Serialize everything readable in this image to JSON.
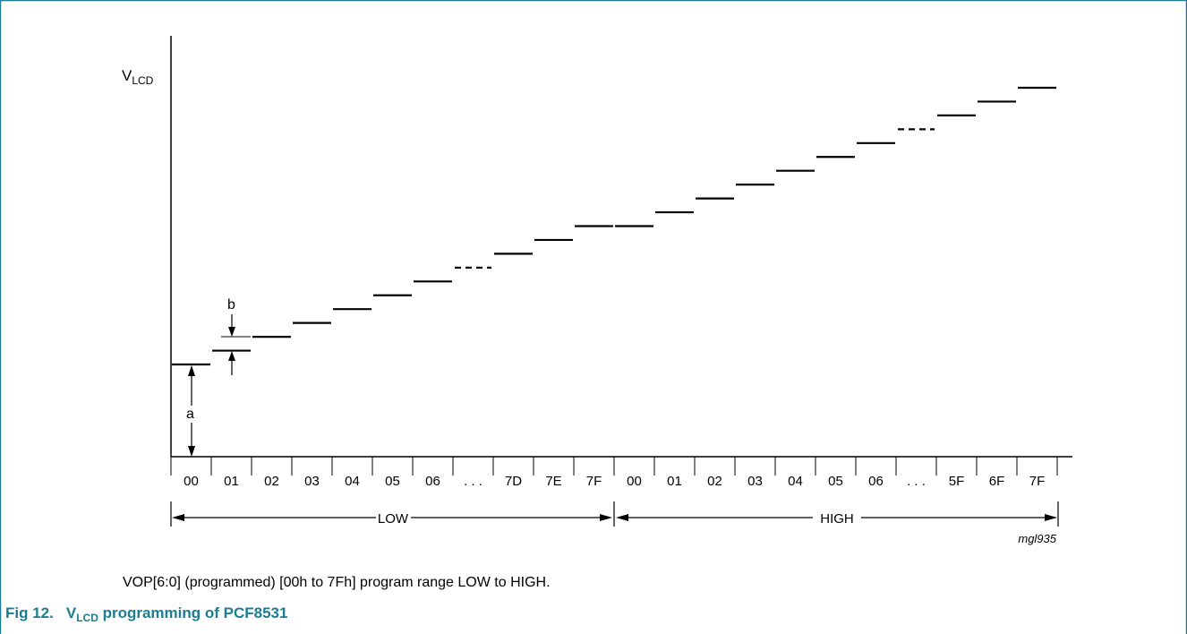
{
  "figure": {
    "label": "Fig 12.",
    "title_prefix": "V",
    "title_sub": "LCD",
    "title_suffix": " programming of PCF8531",
    "caption": "VOP[6:0] (programmed) [00h to 7Fh] program range LOW to HIGH.",
    "ref_code": "mgl935",
    "frame_color": "#1b7c92"
  },
  "axis": {
    "y_label_main": "V",
    "y_label_sub": "LCD"
  },
  "dimensions": {
    "a_label": "a",
    "b_label": "b"
  },
  "ranges": [
    {
      "label": "LOW"
    },
    {
      "label": "HIGH"
    }
  ],
  "x_ticks": [
    "00",
    "01",
    "02",
    "03",
    "04",
    "05",
    "06",
    ". . .",
    "7D",
    "7E",
    "7F",
    "00",
    "01",
    "02",
    "03",
    "04",
    "05",
    "06",
    ". . .",
    "5F",
    "6F",
    "7F"
  ],
  "chart_data": {
    "type": "step",
    "categories": [
      "00",
      "01",
      "02",
      "03",
      "04",
      "05",
      "06",
      ". . .",
      "7D",
      "7E",
      "7F",
      "00",
      "01",
      "02",
      "03",
      "04",
      "05",
      "06",
      ". . .",
      "5F",
      "6F",
      "7F"
    ],
    "steps": [
      0,
      1,
      2,
      3,
      4,
      5,
      6,
      7,
      8,
      9,
      10,
      10,
      11,
      12,
      13,
      14,
      15,
      16,
      17,
      18,
      19,
      20
    ],
    "dashed_indices": [
      7,
      18
    ]
  }
}
